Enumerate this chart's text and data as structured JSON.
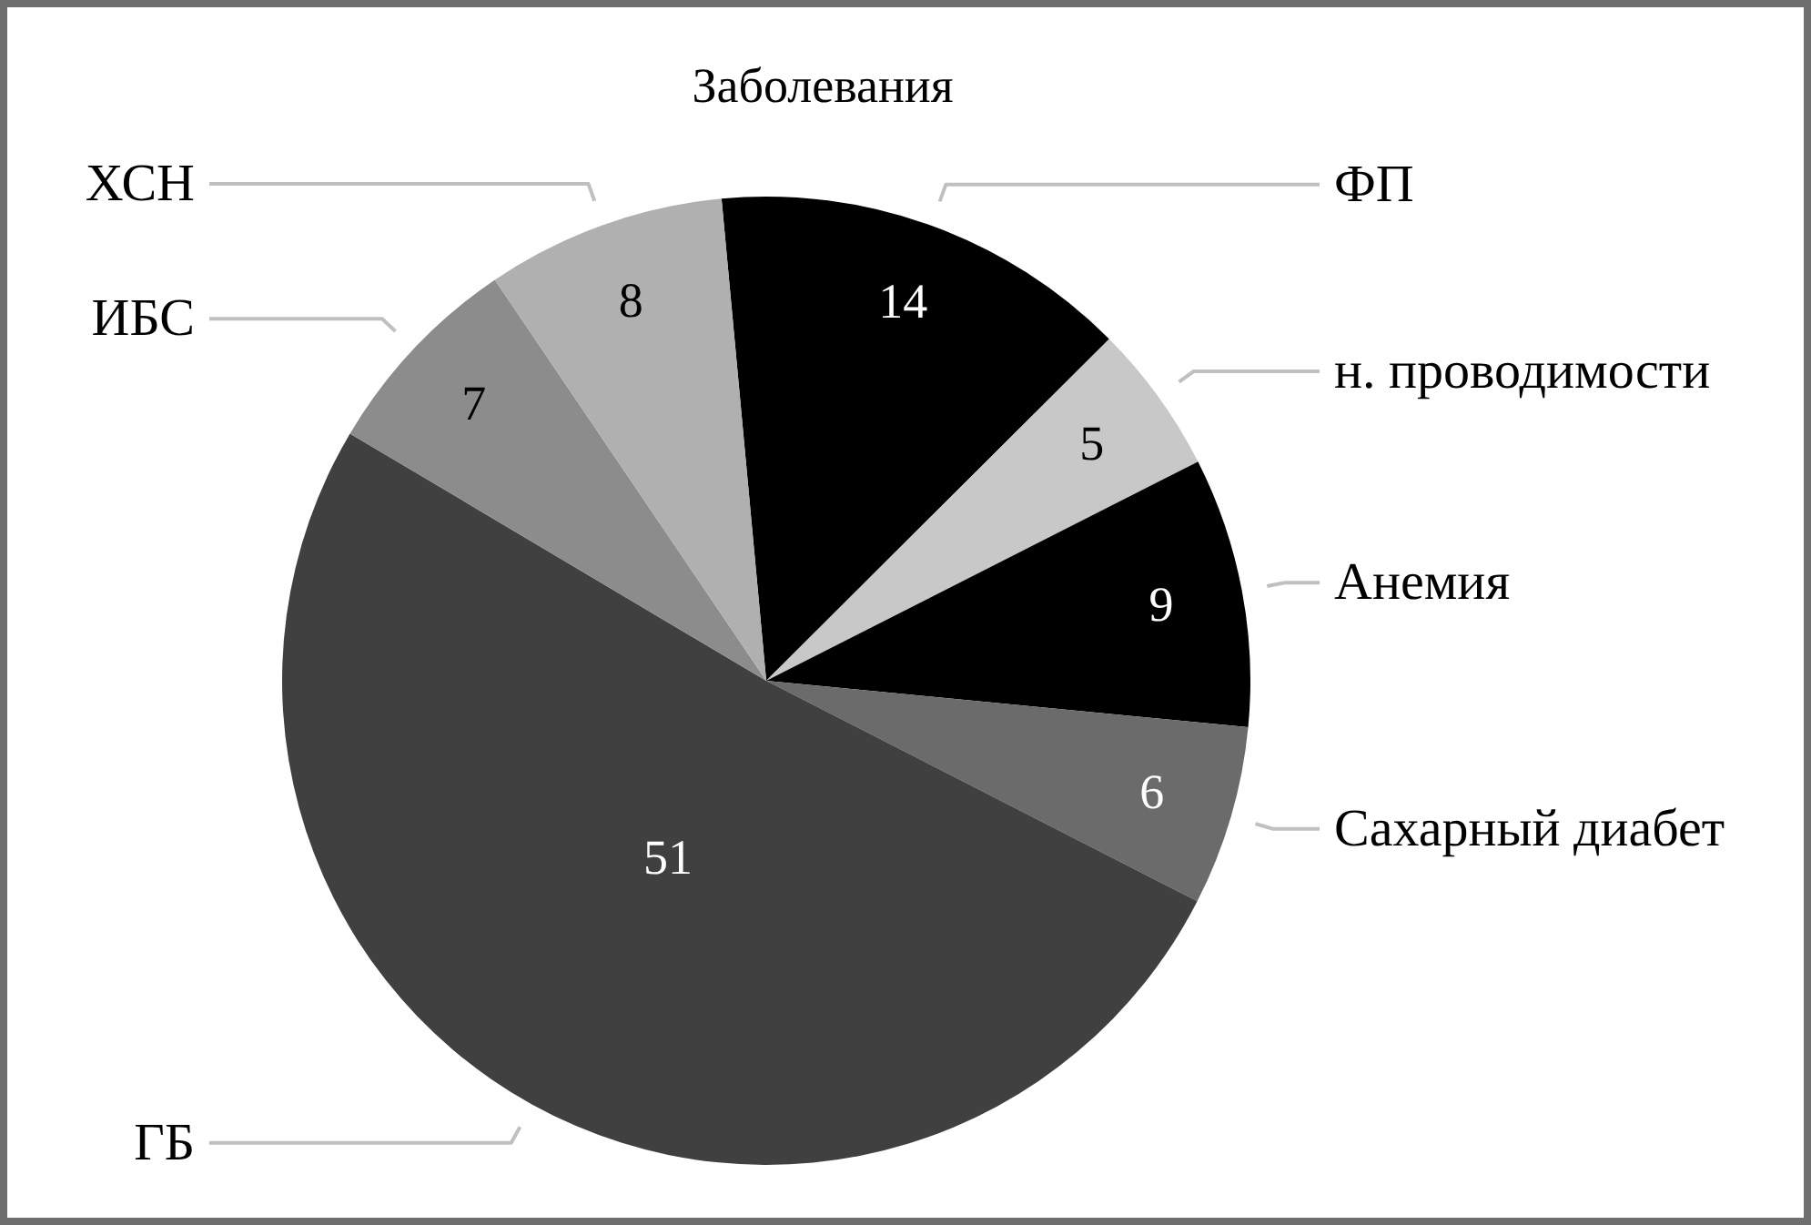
{
  "chart_data": {
    "type": "pie",
    "title": "Заболевания",
    "categories": [
      "ФП",
      "н. проводимости",
      "Анемия",
      "Сахарный диабет",
      "ГБ",
      "ИБС",
      "ХСН"
    ],
    "values": [
      14,
      5,
      9,
      6,
      51,
      7,
      8
    ],
    "colors": [
      "#000000",
      "#c8c8c8",
      "#000000",
      "#6b6b6b",
      "#404040",
      "#8c8c8c",
      "#b0b0b0"
    ],
    "data_labels": true
  }
}
